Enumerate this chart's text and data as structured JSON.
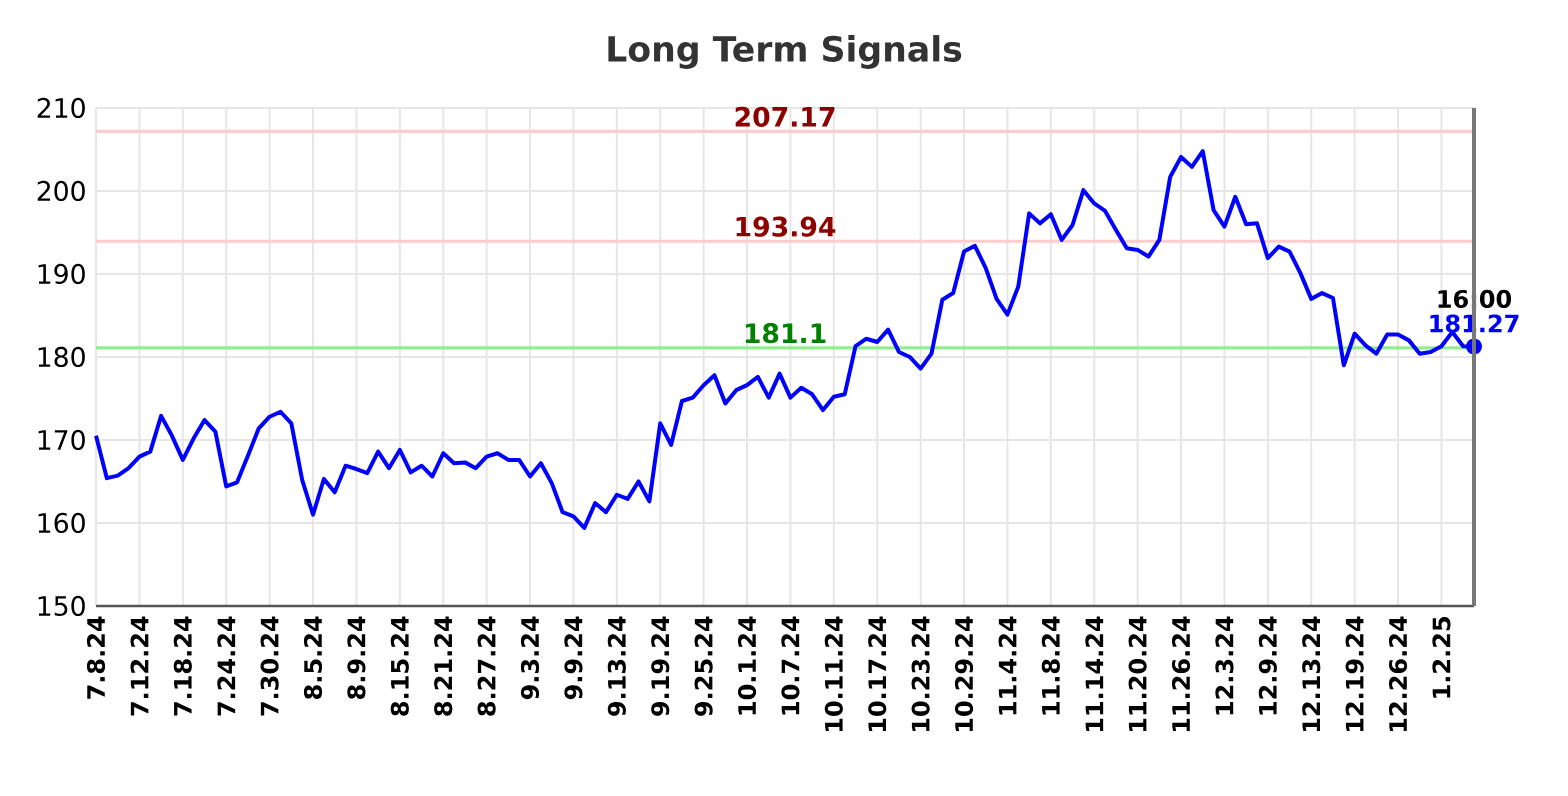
{
  "chart_data": {
    "type": "line",
    "title": "Long Term Signals",
    "categories": [
      "7.8.24",
      null,
      null,
      null,
      "7.12.24",
      null,
      null,
      null,
      "7.18.24",
      null,
      null,
      null,
      "7.24.24",
      null,
      null,
      null,
      "7.30.24",
      null,
      null,
      null,
      "8.5.24",
      null,
      null,
      null,
      "8.9.24",
      null,
      null,
      null,
      "8.15.24",
      null,
      null,
      null,
      "8.21.24",
      null,
      null,
      null,
      "8.27.24",
      null,
      null,
      null,
      "9.3.24",
      null,
      null,
      null,
      "9.9.24",
      null,
      null,
      null,
      "9.13.24",
      null,
      null,
      null,
      "9.19.24",
      null,
      null,
      null,
      "9.25.24",
      null,
      null,
      null,
      "10.1.24",
      null,
      null,
      null,
      "10.7.24",
      null,
      null,
      null,
      "10.11.24",
      null,
      null,
      null,
      "10.17.24",
      null,
      null,
      null,
      "10.23.24",
      null,
      null,
      null,
      "10.29.24",
      null,
      null,
      null,
      "11.4.24",
      null,
      null,
      null,
      "11.8.24",
      null,
      null,
      null,
      "11.14.24",
      null,
      null,
      null,
      "11.20.24",
      null,
      null,
      null,
      "11.26.24",
      null,
      null,
      null,
      "12.3.24",
      null,
      null,
      null,
      "12.9.24",
      null,
      null,
      null,
      "12.13.24",
      null,
      null,
      null,
      "12.19.24",
      null,
      null,
      null,
      "12.26.24",
      null,
      null,
      null,
      "1.2.25",
      null,
      null,
      null
    ],
    "series": [
      {
        "color": "#0000ff",
        "values": [
          170.5,
          165.4,
          165.7,
          166.6,
          168,
          168.6,
          172.9,
          170.5,
          167.6,
          170.2,
          172.4,
          171,
          164.4,
          164.9,
          168.1,
          171.4,
          172.8,
          173.4,
          172,
          165.2,
          161,
          165.3,
          163.7,
          166.9,
          166.5,
          166,
          168.6,
          166.6,
          168.8,
          166.1,
          166.9,
          165.6,
          168.4,
          167.2,
          167.3,
          166.6,
          168,
          168.4,
          167.6,
          167.6,
          165.6,
          167.2,
          164.8,
          161.3,
          160.8,
          159.4,
          162.4,
          161.3,
          163.4,
          162.9,
          165,
          162.6,
          172,
          169.4,
          174.7,
          175.1,
          176.6,
          177.8,
          174.4,
          176,
          176.6,
          177.6,
          175.1,
          178,
          175.1,
          176.3,
          175.5,
          173.6,
          175.2,
          175.5,
          181.3,
          182.2,
          181.8,
          183.3,
          180.6,
          180,
          178.6,
          180.4,
          186.9,
          187.7,
          192.7,
          193.4,
          190.7,
          187,
          185.1,
          188.5,
          197.3,
          196.1,
          197.2,
          194.1,
          195.9,
          200.1,
          198.5,
          197.6,
          195.3,
          193.1,
          192.9,
          192.1,
          194.1,
          201.7,
          204.1,
          202.9,
          204.8,
          197.7,
          195.7,
          199.3,
          196,
          196.1,
          191.9,
          193.3,
          192.7,
          190.1,
          187,
          187.7,
          187.1,
          179,
          182.8,
          181.4,
          180.4,
          182.7,
          182.7,
          182,
          180.4,
          180.6,
          181.3,
          183,
          181.3,
          181.27
        ],
        "value_labels": [
          null,
          null,
          null,
          null,
          null,
          null,
          null,
          null,
          null,
          null,
          null,
          null,
          null,
          null,
          null,
          null,
          null,
          null,
          null,
          null,
          null,
          null,
          null,
          null,
          null,
          null,
          null,
          null,
          null,
          null,
          null,
          null,
          null,
          null,
          null,
          null,
          null,
          null,
          null,
          null,
          null,
          null,
          null,
          null,
          null,
          null,
          null,
          null,
          null,
          null,
          null,
          null,
          null,
          null,
          null,
          null,
          null,
          null,
          null,
          null,
          null,
          null,
          null,
          null,
          null,
          null,
          null,
          null,
          null,
          null,
          null,
          null,
          null,
          null,
          null,
          null,
          null,
          null,
          null,
          null,
          null,
          null,
          null,
          null,
          null,
          null,
          null,
          null,
          null,
          null,
          null,
          null,
          null,
          null,
          null,
          null,
          null,
          null,
          null,
          null,
          null,
          null,
          null,
          null,
          null,
          null,
          null,
          null,
          null,
          null,
          null,
          null,
          null,
          null,
          null,
          null,
          null,
          null,
          null,
          null,
          null,
          null,
          null,
          null,
          null,
          null,
          null,
          "181.27"
        ]
      }
    ],
    "ylim": [
      150,
      210
    ],
    "yticks": [
      150,
      160,
      170,
      180,
      190,
      200,
      210
    ],
    "grid": true,
    "line_style": "solid",
    "ref_lines": [
      {
        "axis": "y",
        "value": 207.17,
        "label": "207.17",
        "color": "#ffcccc"
      },
      {
        "axis": "y",
        "value": 193.94,
        "label": "193.94",
        "color": "#ffcccc"
      },
      {
        "axis": "y",
        "value": 181.1,
        "label": "181.1",
        "color": "#90ee90"
      }
    ],
    "annotations": [
      "16:00"
    ]
  }
}
